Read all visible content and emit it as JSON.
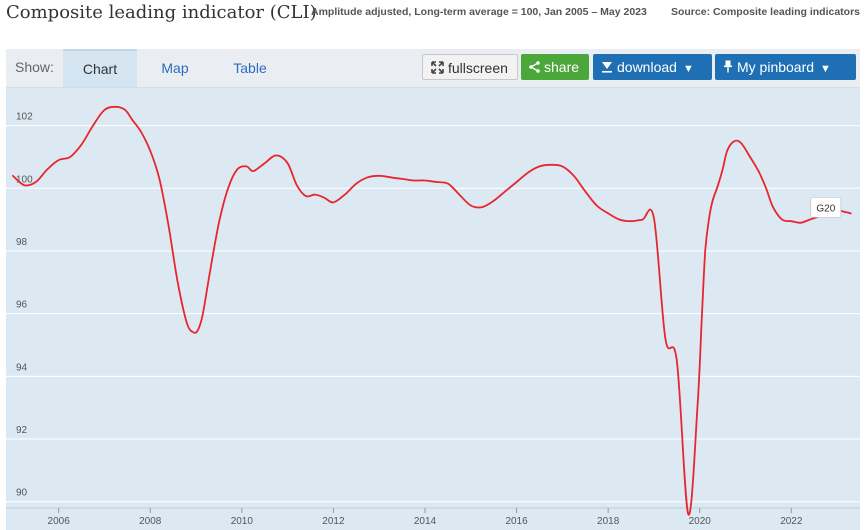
{
  "header": {
    "title": "Composite leading indicator (CLI)",
    "subtitle": "Amplitude adjusted, Long-term average = 100, Jan 2005 – May 2023",
    "source": "Source: Composite leading indicators"
  },
  "toolbar": {
    "show_label": "Show:",
    "tabs": [
      {
        "label": "Chart",
        "active": true
      },
      {
        "label": "Map",
        "active": false
      },
      {
        "label": "Table",
        "active": false
      }
    ],
    "fullscreen_label": "fullscreen",
    "share_label": "share",
    "download_label": "download",
    "pinboard_label": "My pinboard"
  },
  "colors": {
    "plot_background": "#dde9f2",
    "line": "#e8262d",
    "share_button": "#4ca73b",
    "primary_button": "#1f6fb5"
  },
  "chart_data": {
    "type": "line",
    "title": "Composite leading indicator (CLI)",
    "subtitle": "Amplitude adjusted, Long-term average = 100, Jan 2005 – May 2023",
    "xlabel": "",
    "ylabel": "",
    "xlim": [
      2004.85,
      2023.5
    ],
    "ylim": [
      89.8,
      103.2
    ],
    "xticks": [
      "2006",
      "2008",
      "2010",
      "2012",
      "2014",
      "2016",
      "2018",
      "2020",
      "2022"
    ],
    "yticks": [
      "90",
      "92",
      "94",
      "96",
      "98",
      "100",
      "102"
    ],
    "grid": true,
    "series": [
      {
        "name": "G20",
        "label_position": "end",
        "x": [
          2005.0,
          2005.25,
          2005.5,
          2005.75,
          2006.0,
          2006.25,
          2006.5,
          2006.75,
          2007.0,
          2007.25,
          2007.45,
          2007.6,
          2007.8,
          2008.0,
          2008.2,
          2008.4,
          2008.6,
          2008.8,
          2008.95,
          2009.05,
          2009.15,
          2009.3,
          2009.5,
          2009.7,
          2009.9,
          2010.1,
          2010.25,
          2010.5,
          2010.75,
          2011.0,
          2011.2,
          2011.4,
          2011.6,
          2011.8,
          2012.0,
          2012.25,
          2012.5,
          2012.75,
          2013.0,
          2013.25,
          2013.5,
          2013.75,
          2014.0,
          2014.25,
          2014.5,
          2014.75,
          2015.0,
          2015.25,
          2015.5,
          2015.75,
          2016.0,
          2016.25,
          2016.5,
          2016.75,
          2017.0,
          2017.25,
          2017.5,
          2017.75,
          2018.0,
          2018.25,
          2018.5,
          2018.75,
          2019.0,
          2019.25,
          2019.5,
          2019.75,
          2019.95,
          2020.05,
          2020.12,
          2020.2,
          2020.28,
          2020.4,
          2020.5,
          2020.6,
          2020.75,
          2020.9,
          2021.1,
          2021.3,
          2021.45,
          2021.6,
          2021.8,
          2022.0,
          2022.2,
          2022.4,
          2022.6,
          2022.8,
          2023.0,
          2023.15,
          2023.3
        ],
        "values": [
          100.4,
          100.1,
          100.2,
          100.6,
          100.9,
          101.0,
          101.4,
          102.0,
          102.5,
          102.6,
          102.5,
          102.2,
          101.8,
          101.2,
          100.3,
          98.8,
          97.0,
          95.7,
          95.4,
          95.5,
          96.0,
          97.3,
          98.9,
          100.0,
          100.6,
          100.7,
          100.55,
          100.8,
          101.05,
          100.8,
          100.1,
          99.75,
          99.8,
          99.7,
          99.55,
          99.8,
          100.15,
          100.35,
          100.4,
          100.35,
          100.3,
          100.25,
          100.25,
          100.2,
          100.15,
          99.8,
          99.45,
          99.4,
          99.6,
          99.9,
          100.2,
          100.5,
          100.7,
          100.75,
          100.7,
          100.4,
          99.9,
          99.45,
          99.2,
          99.0,
          98.95,
          99.0,
          99.05,
          95.2,
          94.5,
          89.6,
          93.0,
          96.0,
          98.0,
          99.0,
          99.6,
          100.1,
          100.6,
          101.2,
          101.5,
          101.45,
          101.0,
          100.5,
          100.0,
          99.4,
          99.0,
          98.95,
          98.9,
          99.0,
          99.1,
          99.2,
          99.3,
          99.25,
          99.2
        ]
      }
    ]
  }
}
